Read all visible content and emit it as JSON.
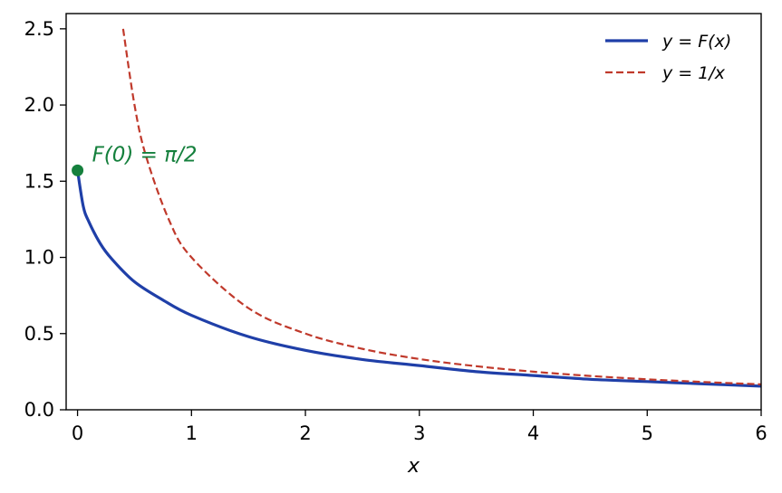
{
  "chart_data": {
    "type": "line",
    "xlabel": "x",
    "ylabel": "",
    "xlim": [
      -0.1,
      6
    ],
    "ylim": [
      0,
      2.6
    ],
    "x_ticks": [
      0,
      1,
      2,
      3,
      4,
      5,
      6
    ],
    "x_tick_labels": [
      "0",
      "1",
      "2",
      "3",
      "4",
      "5",
      "6"
    ],
    "y_ticks": [
      0,
      0.5,
      1.0,
      1.5,
      2.0,
      2.5
    ],
    "y_tick_labels": [
      "0.0",
      "0.5",
      "1.0",
      "1.5",
      "2.0",
      "2.5"
    ],
    "grid": false,
    "legend_position": "top-right",
    "series": [
      {
        "name": "y = F(x)",
        "color": "#1f3fa8",
        "style": "solid",
        "x": [
          0,
          0.05,
          0.1,
          0.2,
          0.3,
          0.5,
          0.75,
          1,
          1.5,
          2,
          2.5,
          3,
          3.5,
          4,
          4.5,
          5,
          5.5,
          6
        ],
        "y": [
          1.571,
          1.336,
          1.233,
          1.09,
          0.99,
          0.84,
          0.72,
          0.62,
          0.48,
          0.39,
          0.33,
          0.29,
          0.25,
          0.225,
          0.2,
          0.185,
          0.17,
          0.155
        ]
      },
      {
        "name": "y = 1/x",
        "color": "#c0392b",
        "style": "dashed",
        "x": [
          0.4,
          0.5,
          0.6,
          0.8,
          1,
          1.5,
          2,
          2.5,
          3,
          3.5,
          4,
          4.5,
          5,
          5.5,
          6
        ],
        "y": [
          2.5,
          2.0,
          1.667,
          1.25,
          1.0,
          0.667,
          0.5,
          0.4,
          0.333,
          0.286,
          0.25,
          0.222,
          0.2,
          0.182,
          0.167
        ]
      }
    ],
    "annotations": [
      {
        "text": "F(0) = π/2",
        "x": 0,
        "y": 1.571,
        "color": "#15803d"
      }
    ]
  }
}
